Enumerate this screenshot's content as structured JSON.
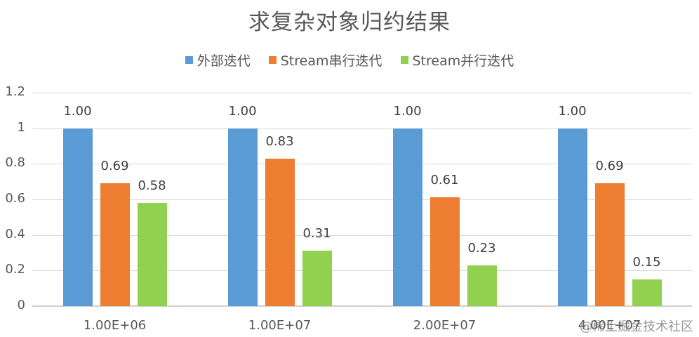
{
  "chart_data": {
    "type": "bar",
    "title": "求复杂对象归约结果",
    "xlabel": "",
    "ylabel": "",
    "ylim": [
      0,
      1.2
    ],
    "yticks": [
      "0",
      "0.2",
      "0.4",
      "0.6",
      "0.8",
      "1",
      "1.2"
    ],
    "grid": true,
    "legend_position": "top",
    "categories": [
      "1.00E+06",
      "1.00E+07",
      "2.00E+07",
      "4.00E+07"
    ],
    "series": [
      {
        "name": "外部迭代",
        "color": "#5b9bd5",
        "values": [
          1.0,
          1.0,
          1.0,
          1.0
        ],
        "labels": [
          "1.00",
          "1.00",
          "1.00",
          "1.00"
        ]
      },
      {
        "name": "Stream串行迭代",
        "color": "#ed7d31",
        "values": [
          0.69,
          0.83,
          0.61,
          0.69
        ],
        "labels": [
          "0.69",
          "0.83",
          "0.61",
          "0.69"
        ]
      },
      {
        "name": "Stream并行迭代",
        "color": "#92d050",
        "values": [
          0.58,
          0.31,
          0.23,
          0.15
        ],
        "labels": [
          "0.58",
          "0.31",
          "0.23",
          "0.15"
        ]
      }
    ]
  },
  "watermark": "@稀土掘金技术社区"
}
